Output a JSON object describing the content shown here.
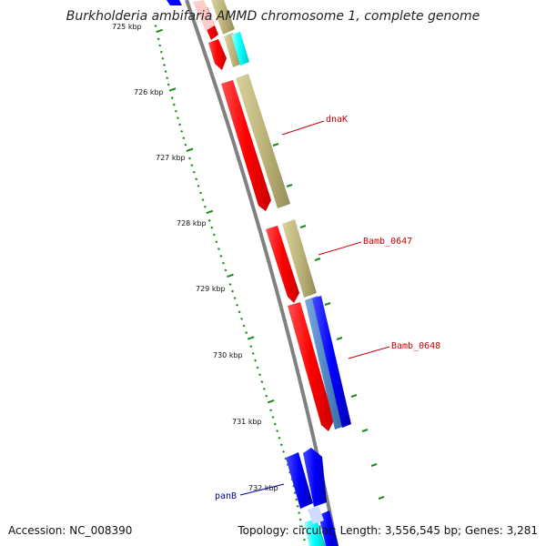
{
  "title": "Burkholderia ambifaria AMMD chromosome 1, complete genome",
  "footer": {
    "accession": "Accession: NC_008390",
    "summary": "Topology: circular; Length: 3,556,545 bp; Genes: 3,281"
  },
  "colors": {
    "cds_forward": "#ff0000",
    "cds_reverse": "#0000ff",
    "gene_feature": "#bdb57a",
    "blue_feature": "#4f86c6",
    "cyan_feature": "#00ffff",
    "light_feature": "#ffc8c8",
    "backbone": "#808080",
    "tick": "#1a8a1a",
    "forward_label": "#cc0000",
    "reverse_label": "#0000aa"
  },
  "ruler": {
    "unit": "kbp",
    "labels": [
      {
        "value": 725,
        "text": "725 kbp"
      },
      {
        "value": 726,
        "text": "726 kbp"
      },
      {
        "value": 727,
        "text": "727 kbp"
      },
      {
        "value": 728,
        "text": "728 kbp"
      },
      {
        "value": 729,
        "text": "729 kbp"
      },
      {
        "value": 730,
        "text": "730 kbp"
      },
      {
        "value": 731,
        "text": "731 kbp"
      },
      {
        "value": 732,
        "text": "732 kbp"
      }
    ]
  },
  "gene_labels": [
    {
      "name": "dnaK",
      "strand": "forward"
    },
    {
      "name": "Bamb_0647",
      "strand": "forward"
    },
    {
      "name": "Bamb_0648",
      "strand": "forward"
    },
    {
      "name": "panB",
      "strand": "reverse"
    }
  ]
}
